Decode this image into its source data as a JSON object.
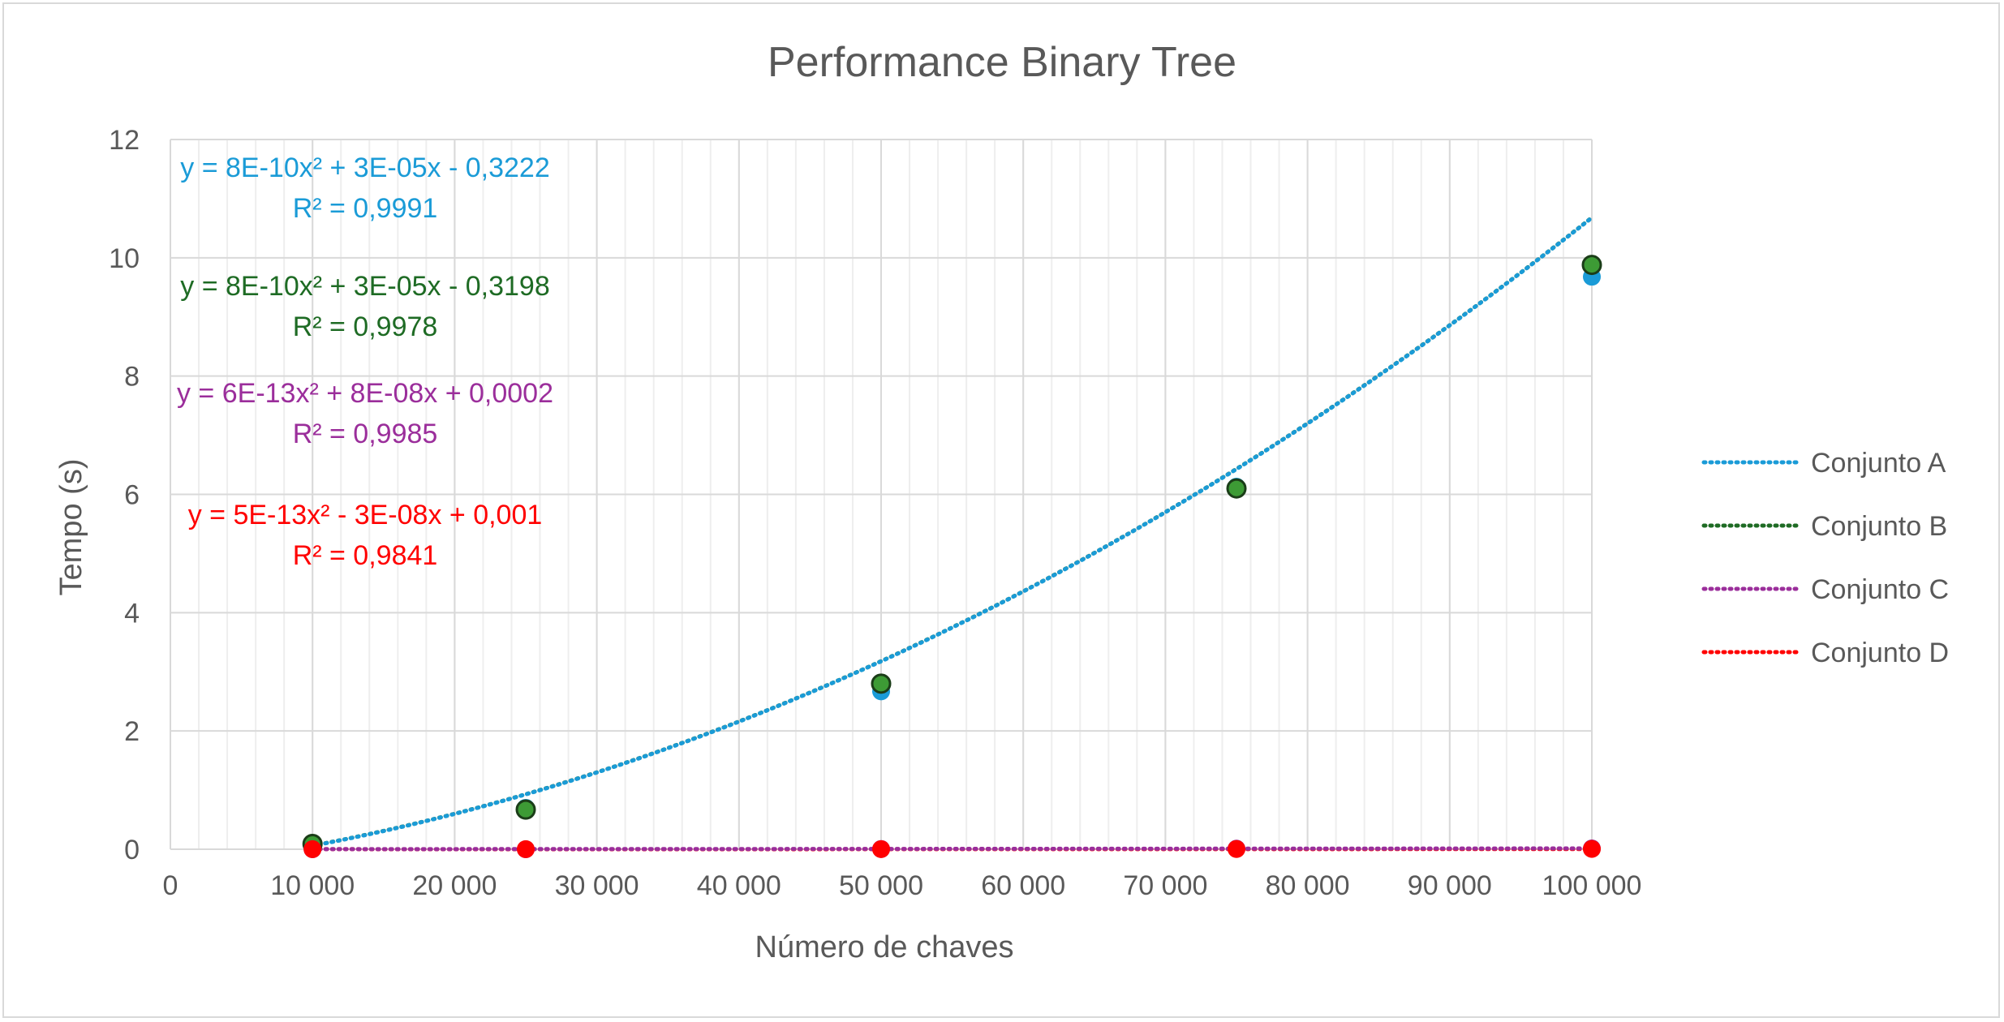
{
  "chart_data": {
    "type": "scatter",
    "title": "Performance Binary Tree",
    "xlabel": "Número de chaves",
    "ylabel": "Tempo (s)",
    "xlim": [
      0,
      100000
    ],
    "ylim": [
      0,
      12
    ],
    "x_ticks": [
      0,
      10000,
      20000,
      30000,
      40000,
      50000,
      60000,
      70000,
      80000,
      90000,
      100000
    ],
    "x_tick_labels": [
      "0",
      "10 000",
      "20 000",
      "30 000",
      "40 000",
      "50 000",
      "60 000",
      "70 000",
      "80 000",
      "90 000",
      "100 000"
    ],
    "y_ticks": [
      0,
      2,
      4,
      6,
      8,
      10,
      12
    ],
    "y_tick_labels": [
      "0",
      "2",
      "4",
      "6",
      "8",
      "10",
      "12"
    ],
    "grid": true,
    "minor_x_grid_step": 2000,
    "legend_position": "right",
    "x": [
      10000,
      25000,
      50000,
      75000,
      100000
    ],
    "series": [
      {
        "name": "Conjunto A",
        "color": "#1a9bd7",
        "marker_color": "#1a9bd7",
        "values": [
          0.08,
          0.7,
          2.67,
          6.13,
          9.68
        ],
        "trendline": {
          "a": 8e-10,
          "b": 3e-05,
          "c": -0.3222
        },
        "equation": "y = 8E-10x² + 3E-05x - 0,3222",
        "r2": "R² = 0,9991"
      },
      {
        "name": "Conjunto B",
        "color": "#1e6b24",
        "marker_color": "#3d9b35",
        "values": [
          0.09,
          0.67,
          2.8,
          6.1,
          9.88
        ],
        "trendline": {
          "a": 8e-10,
          "b": 3e-05,
          "c": -0.3198
        },
        "equation": "y = 8E-10x² + 3E-05x - 0,3198",
        "r2": "R² = 0,9978"
      },
      {
        "name": "Conjunto C",
        "color": "#9b2e9b",
        "marker_color": "#9b2e9b",
        "values": [
          0.0,
          0.0,
          0.004,
          0.01,
          0.013
        ],
        "trendline": {
          "a": 6e-13,
          "b": 8e-08,
          "c": 0.0002
        },
        "equation": "y = 6E-13x² + 8E-08x + 0,0002",
        "r2": "R² = 0,9985"
      },
      {
        "name": "Conjunto D",
        "color": "#ff0000",
        "marker_color": "#ff0000",
        "values": [
          0.001,
          0.001,
          0.002,
          0.004,
          0.005
        ],
        "trendline": {
          "a": 5e-13,
          "b": -3e-08,
          "c": 0.001
        },
        "equation": "y = 5E-13x² - 3E-08x + 0,001",
        "r2": "R² = 0,9841"
      }
    ]
  }
}
